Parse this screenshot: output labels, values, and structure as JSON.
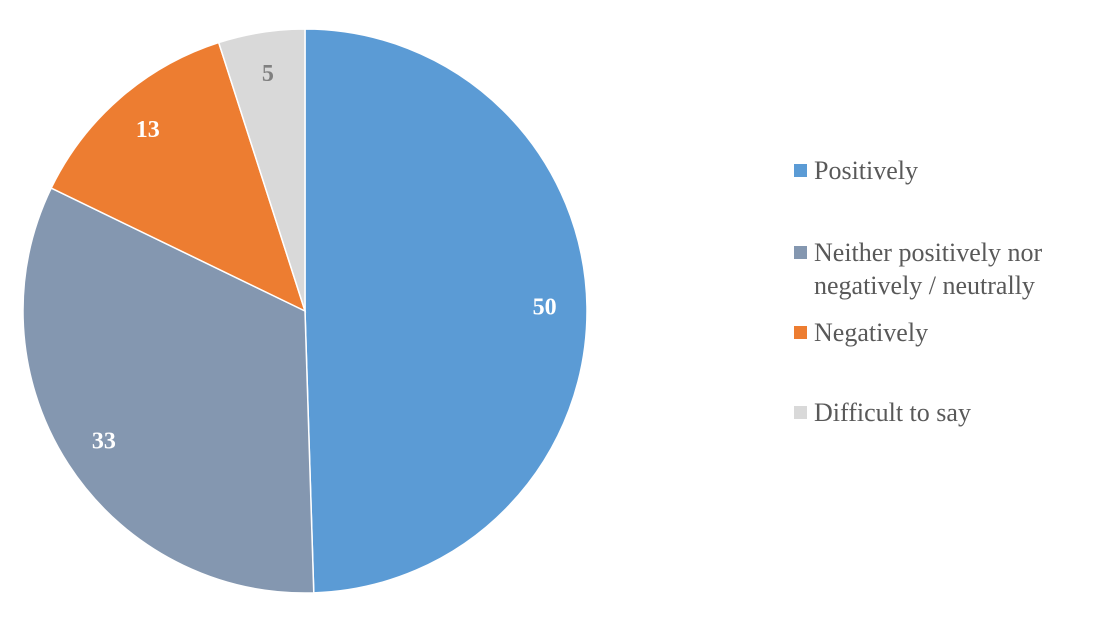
{
  "chart_data": {
    "type": "pie",
    "title": "",
    "slices": [
      {
        "label": "Positively",
        "value": 50,
        "color": "#5B9BD5",
        "label_color": "#ffffff"
      },
      {
        "label": "Neither positively nor\nnegatively / neutrally",
        "value": 33,
        "color": "#8497B0",
        "label_color": "#ffffff"
      },
      {
        "label": "Negatively",
        "value": 13,
        "color": "#ED7D31",
        "label_color": "#ffffff"
      },
      {
        "label": "Difficult to say",
        "value": 5,
        "color": "#D9D9D9",
        "label_color": "#808080"
      }
    ],
    "start_angle": "12 o'clock",
    "direction": "clockwise",
    "legend_position": "right"
  }
}
